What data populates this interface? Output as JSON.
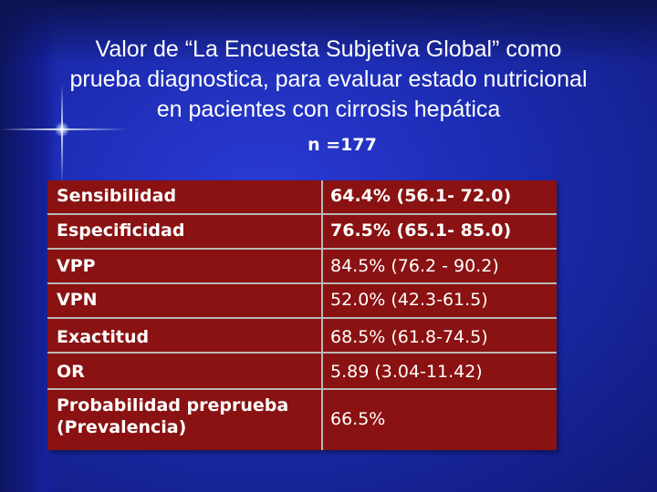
{
  "slide": {
    "title_lines": [
      "Valor de “La Encuesta Subjetiva Global” como",
      "prueba diagnostica, para evaluar estado nutricional",
      "en  pacientes con cirrosis hepática"
    ],
    "subtitle": "n =177"
  },
  "table": {
    "rows": [
      {
        "label": "Sensibilidad",
        "value": "64.4% (56.1- 72.0)"
      },
      {
        "label": "Especificidad",
        "value": "76.5% (65.1- 85.0)"
      },
      {
        "label": "VPP",
        "value": "84.5% (76.2 - 90.2)"
      },
      {
        "label": "VPN",
        "value": "52.0% (42.3-61.5)"
      },
      {
        "label": "Exactitud",
        "value": "68.5% (61.8-74.5)"
      },
      {
        "label": "OR",
        "value": "5.89 (3.04-11.42)"
      },
      {
        "label_lines": [
          "Probabilidad preprueba",
          "(Prevalencia)"
        ],
        "value": "66.5%"
      }
    ]
  },
  "colors": {
    "background": "#1c2bb0",
    "table_fill": "#8a1212",
    "grid_line": "#b8b8b8",
    "text": "#ffffff"
  }
}
